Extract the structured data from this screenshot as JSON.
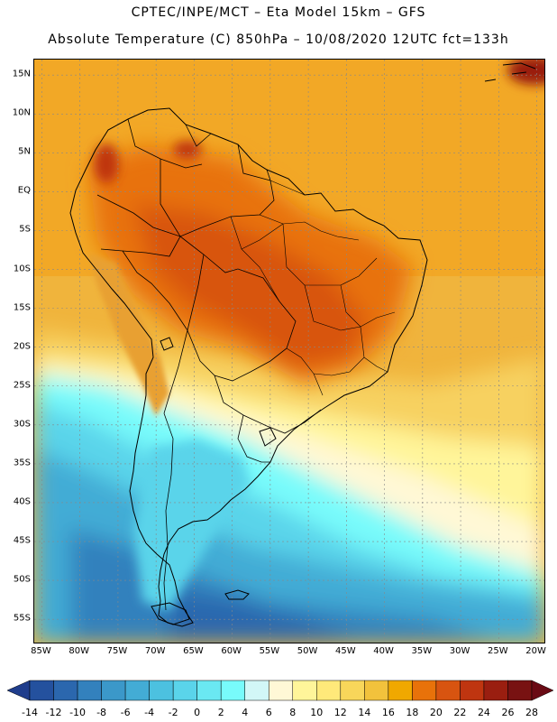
{
  "header": {
    "line1": "CPTEC/INPE/MCT –  Eta Model 15km – GFS",
    "line2": "Absolute Temperature (C) 850hPa – 10/08/2020 12UTC fct=133h"
  },
  "map": {
    "lon_range": [
      -86,
      -19
    ],
    "lat_range": [
      -58,
      17
    ],
    "lat_ticks": [
      {
        "value": 15,
        "label": "15N"
      },
      {
        "value": 10,
        "label": "10N"
      },
      {
        "value": 5,
        "label": "5N"
      },
      {
        "value": 0,
        "label": "EQ"
      },
      {
        "value": -5,
        "label": "5S"
      },
      {
        "value": -10,
        "label": "10S"
      },
      {
        "value": -15,
        "label": "15S"
      },
      {
        "value": -20,
        "label": "20S"
      },
      {
        "value": -25,
        "label": "25S"
      },
      {
        "value": -30,
        "label": "30S"
      },
      {
        "value": -35,
        "label": "35S"
      },
      {
        "value": -40,
        "label": "40S"
      },
      {
        "value": -45,
        "label": "45S"
      },
      {
        "value": -50,
        "label": "50S"
      },
      {
        "value": -55,
        "label": "55S"
      }
    ],
    "lon_ticks": [
      {
        "value": -85,
        "label": "85W"
      },
      {
        "value": -80,
        "label": "80W"
      },
      {
        "value": -75,
        "label": "75W"
      },
      {
        "value": -70,
        "label": "70W"
      },
      {
        "value": -65,
        "label": "65W"
      },
      {
        "value": -60,
        "label": "60W"
      },
      {
        "value": -55,
        "label": "55W"
      },
      {
        "value": -50,
        "label": "50W"
      },
      {
        "value": -45,
        "label": "45W"
      },
      {
        "value": -40,
        "label": "40W"
      },
      {
        "value": -35,
        "label": "35W"
      },
      {
        "value": -30,
        "label": "30W"
      },
      {
        "value": -25,
        "label": "25W"
      },
      {
        "value": -20,
        "label": "20W"
      }
    ]
  },
  "colorbar": {
    "levels": [
      "-14",
      "-12",
      "-10",
      "-8",
      "-6",
      "-4",
      "-2",
      "0",
      "2",
      "4",
      "6",
      "8",
      "10",
      "12",
      "14",
      "16",
      "18",
      "20",
      "22",
      "24",
      "26",
      "28"
    ],
    "colors": [
      "#1f3d8c",
      "#24519e",
      "#2b67ae",
      "#3381bd",
      "#3b98c9",
      "#43acd5",
      "#4cc1e0",
      "#5ad4ea",
      "#6ae8f2",
      "#78fbfb",
      "#d2f7f7",
      "#fff8d6",
      "#fff59a",
      "#ffe97a",
      "#f8d65a",
      "#f2c23c",
      "#f0a800",
      "#e8720a",
      "#d85410",
      "#bf3510",
      "#9a1e10",
      "#781212",
      "#6a0a14"
    ]
  },
  "colors": {
    "ocean_cold": "#3aa4d0",
    "ocean_warm": "#f0b43c",
    "land_hot": "#dc6a18",
    "coast_line": "#000000",
    "grid": "#888888"
  }
}
